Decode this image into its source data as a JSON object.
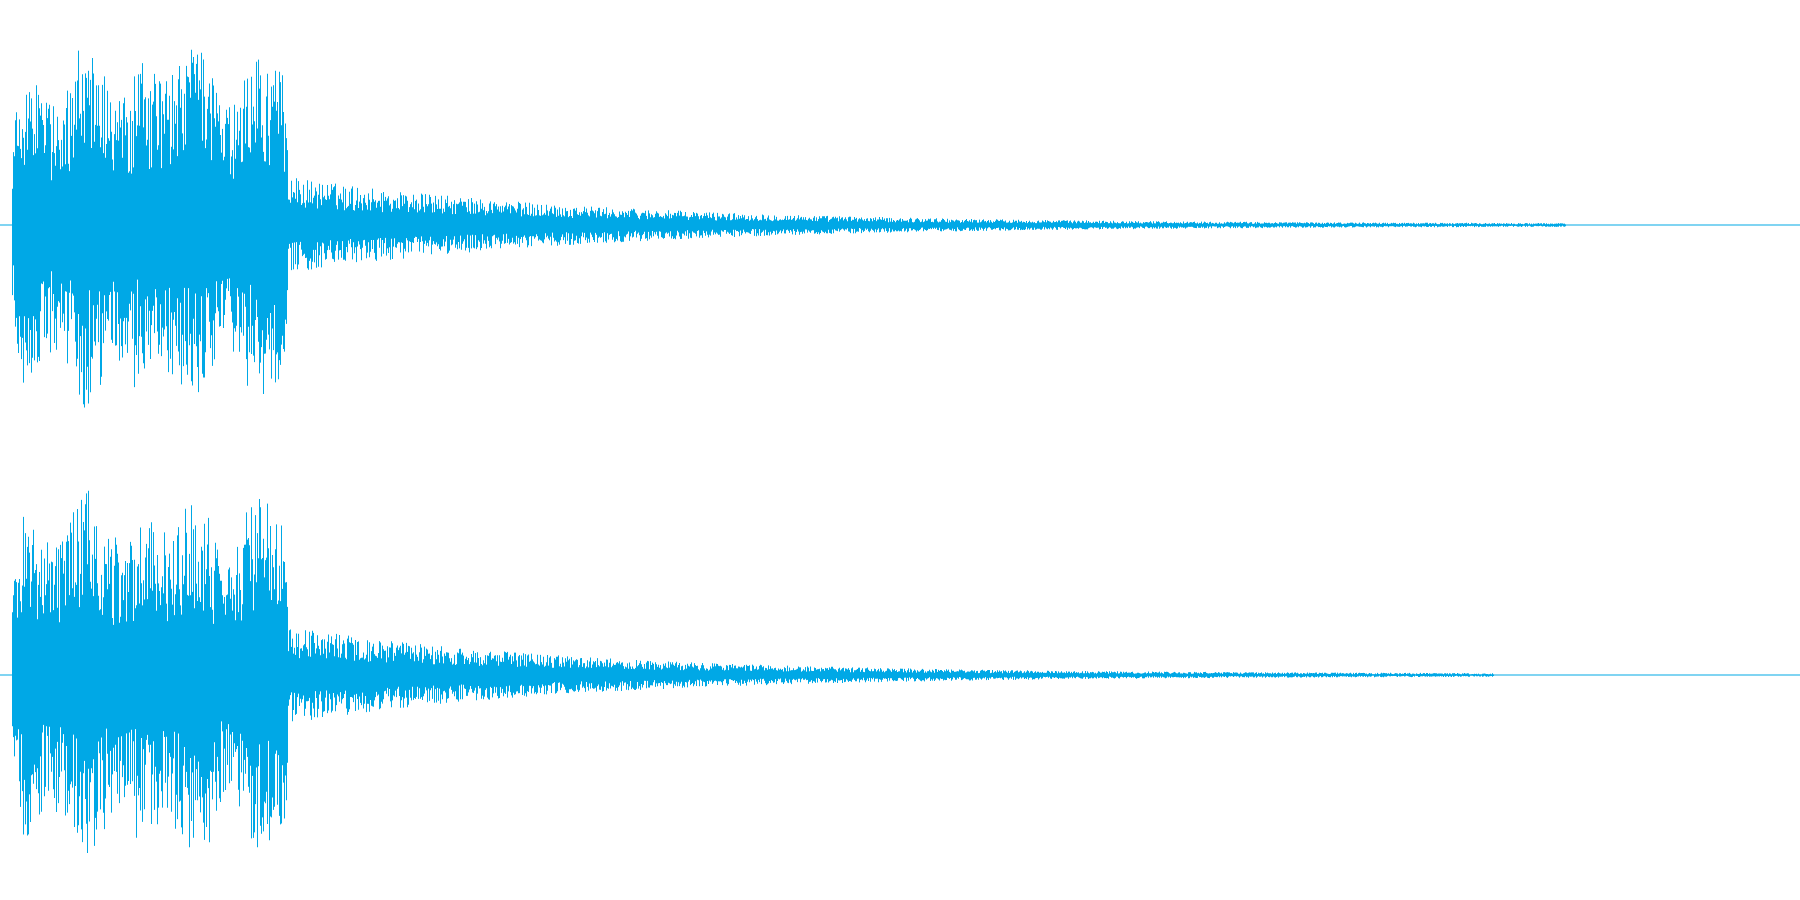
{
  "waveform": {
    "color": "#00a8e6",
    "background": "#ffffff",
    "channels": [
      {
        "name": "",
        "peak_amplitude": 0.92,
        "attack_end_fraction": 0.16,
        "tail_end_fraction": 0.87
      },
      {
        "name": "",
        "peak_amplitude": 0.92,
        "attack_end_fraction": 0.16,
        "tail_end_fraction": 0.83
      }
    ]
  }
}
